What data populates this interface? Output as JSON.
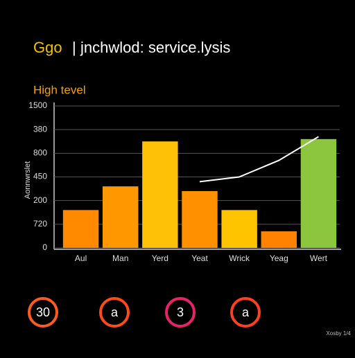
{
  "chart_data": {
    "type": "bar",
    "title_prefix": "Ggo",
    "title_separator": "|",
    "title": "jnchwlod: service.lysis",
    "subtitle": "High tevel",
    "y_label": "Aonnwrslet",
    "categories": [
      "Aul",
      "Man",
      "Yerd",
      "Yeat",
      "Wrick",
      "Yeag",
      "Wert"
    ],
    "values": [
      1.6,
      2.6,
      4.5,
      2.4,
      1.6,
      0.7,
      4.6
    ],
    "colors": [
      "#ff8a00",
      "#ff9800",
      "#ffc107",
      "#ff9000",
      "#ffc400",
      "#ff8200",
      "#8cc63f"
    ],
    "line": {
      "color": "#ffffff",
      "values": [
        null,
        null,
        null,
        2.8,
        3.0,
        3.7,
        4.7
      ]
    },
    "ylim": [
      0,
      6
    ],
    "yticks": [
      {
        "value": 0,
        "label": "0"
      },
      {
        "value": 1,
        "label": "720"
      },
      {
        "value": 2,
        "label": "200"
      },
      {
        "value": 3,
        "label": "450"
      },
      {
        "value": 4,
        "label": "800"
      },
      {
        "value": 5,
        "label": "380"
      },
      {
        "value": 6,
        "label": "1500"
      }
    ],
    "grid": true,
    "badges": [
      {
        "label": "30",
        "color": "#ff5a1f"
      },
      {
        "label": "a",
        "color": "#ff4a1a"
      },
      {
        "label": "3",
        "color": "#e8236b"
      },
      {
        "label": "a",
        "color": "#ff4020"
      }
    ],
    "watermark": "Xosby 1/4"
  }
}
